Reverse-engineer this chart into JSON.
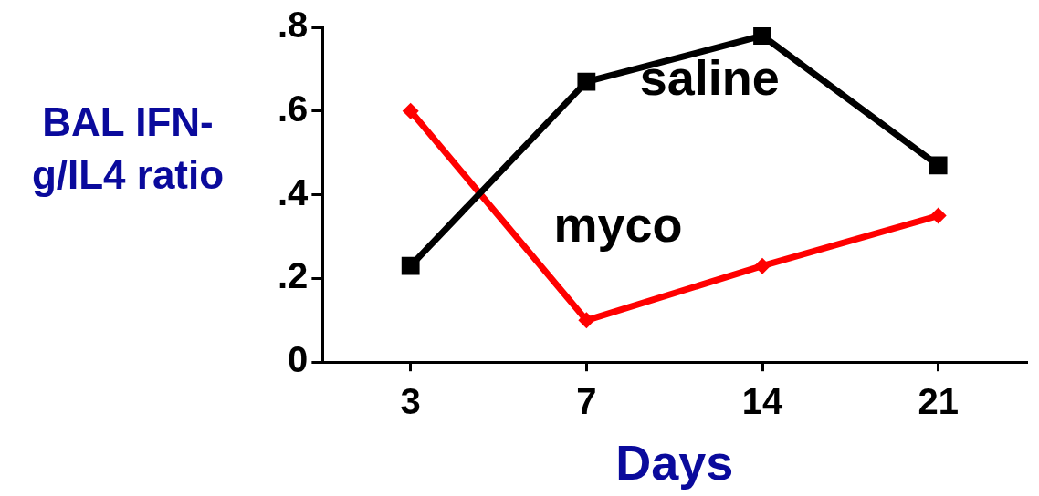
{
  "chart_data": {
    "type": "line",
    "xlabel": "Days",
    "ylabel": "BAL IFN-g/IL4 ratio",
    "categories": [
      "3",
      "7",
      "14",
      "21"
    ],
    "series": [
      {
        "name": "saline",
        "color": "#000000",
        "marker": "square",
        "values": [
          0.23,
          0.67,
          0.78,
          0.47
        ]
      },
      {
        "name": "myco",
        "color": "#ff0000",
        "marker": "diamond",
        "values": [
          0.6,
          0.1,
          0.23,
          0.35
        ]
      }
    ],
    "ylim": [
      0,
      0.8
    ],
    "yticks": [
      0,
      {
        "value": 0.2,
        "label": ".2"
      },
      {
        "value": 0.4,
        "label": ".4"
      },
      {
        "value": 0.6,
        "label": ".6"
      },
      {
        "value": 0.8,
        "label": ".8"
      }
    ],
    "grid": false,
    "legend": false,
    "line_style": "solid"
  }
}
